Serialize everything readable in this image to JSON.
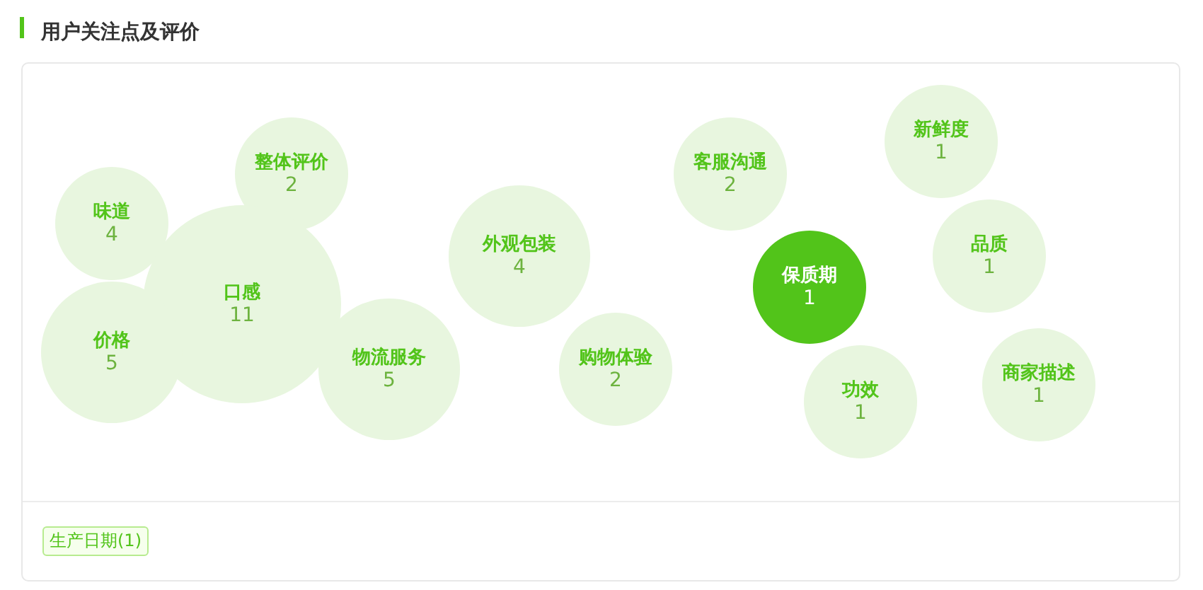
{
  "chart_data": {
    "type": "other",
    "title": "用户关注点及评价",
    "categories": [
      "味道",
      "整体评价",
      "口感",
      "价格",
      "物流服务",
      "外观包装",
      "购物体验",
      "客服沟通",
      "保质期",
      "新鲜度",
      "品质",
      "功效",
      "商家描述"
    ],
    "values": [
      4,
      2,
      11,
      5,
      5,
      4,
      2,
      2,
      1,
      1,
      1,
      1,
      1
    ],
    "colors": [
      "#e8f6df",
      "#e8f6df",
      "#e8f6df",
      "#e8f6df",
      "#e8f6df",
      "#e8f6df",
      "#e8f6df",
      "#e8f6df",
      "#52c41a",
      "#e8f6df",
      "#e8f6df",
      "#e8f6df",
      "#e8f6df"
    ],
    "data_labels": true,
    "annotations": [
      "生产日期(1)"
    ]
  }
}
